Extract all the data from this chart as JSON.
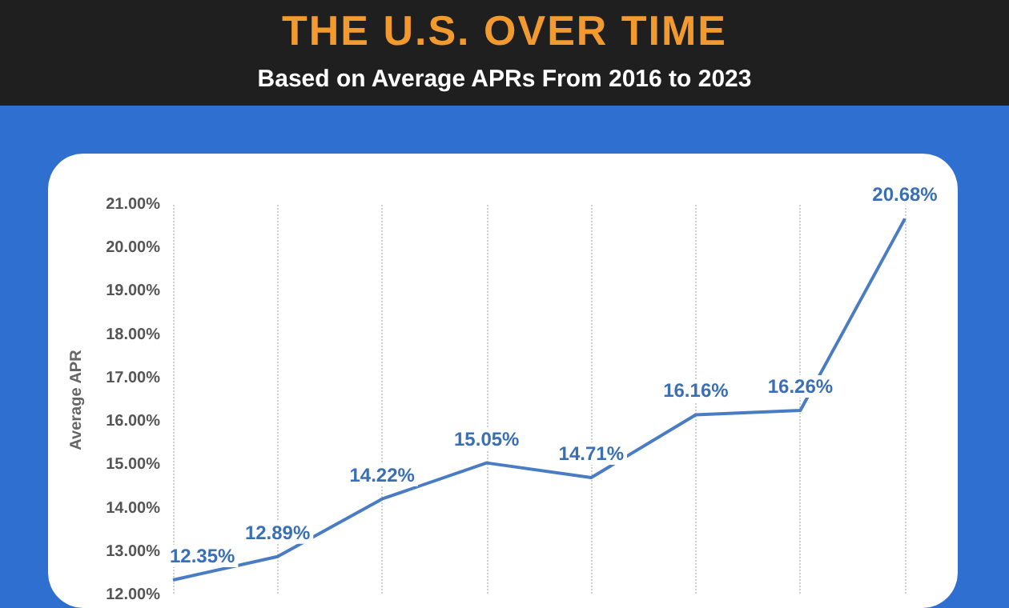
{
  "chart_data": {
    "type": "line",
    "title": "THE U.S. OVER TIME",
    "subtitle": "Based on Average APRs From 2016 to 2023",
    "ylabel": "Average APR",
    "categories": [
      null,
      null,
      null,
      null,
      null,
      null,
      null,
      null
    ],
    "series": [
      {
        "color": "#4a7cc4",
        "values": [
          12.35,
          12.89,
          14.22,
          15.05,
          14.71,
          16.16,
          16.26,
          20.68
        ],
        "value_labels": [
          "12.35%",
          "12.89%",
          "14.22%",
          "15.05%",
          "14.71%",
          "16.16%",
          "16.26%",
          "20.68%"
        ]
      }
    ],
    "ylim": [
      12,
      21
    ],
    "yticks": [
      {
        "value": 12,
        "label": "12.00%"
      },
      {
        "value": 13,
        "label": "13.00%"
      },
      {
        "value": 14,
        "label": "14.00%"
      },
      {
        "value": 15,
        "label": "15.00%"
      },
      {
        "value": 16,
        "label": "16.00%"
      },
      {
        "value": 17,
        "label": "17.00%"
      },
      {
        "value": 18,
        "label": "18.00%"
      },
      {
        "value": 19,
        "label": "19.00%"
      },
      {
        "value": 20,
        "label": "20.00%"
      },
      {
        "value": 21,
        "label": "21.00%"
      }
    ],
    "grid": "x",
    "marker": "none",
    "line_style": "solid"
  }
}
